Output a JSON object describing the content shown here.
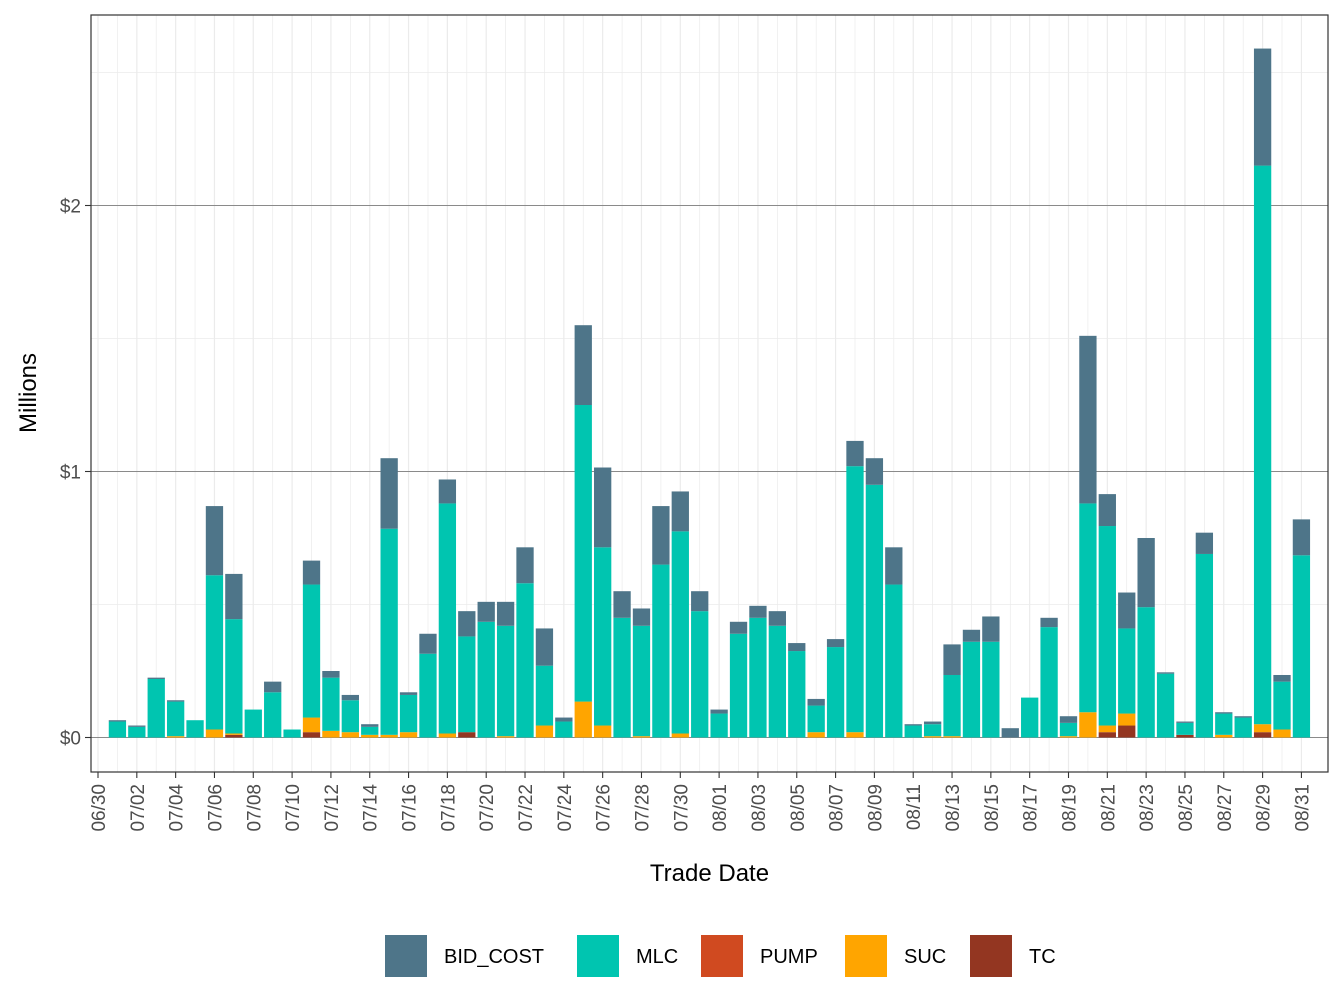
{
  "chart_data": {
    "type": "bar",
    "stacked": true,
    "title": "",
    "xlabel": "Trade Date",
    "ylabel": "Millions",
    "ylim": [
      -0.13,
      2.7
    ],
    "y_ticks": [
      0,
      1,
      2
    ],
    "y_tick_labels": [
      "$0",
      "$1",
      "$2"
    ],
    "grid": true,
    "legend_position": "bottom",
    "x_tick_labels": [
      "06/30",
      "07/02",
      "07/04",
      "07/06",
      "07/08",
      "07/10",
      "07/12",
      "07/14",
      "07/16",
      "07/18",
      "07/20",
      "07/22",
      "07/24",
      "07/26",
      "07/28",
      "07/30",
      "08/01",
      "08/03",
      "08/05",
      "08/07",
      "08/09",
      "08/11",
      "08/13",
      "08/15",
      "08/17",
      "08/19",
      "08/21",
      "08/23",
      "08/25",
      "08/27",
      "08/29",
      "08/31"
    ],
    "categories": [
      "07/01",
      "07/02",
      "07/03",
      "07/04",
      "07/05",
      "07/06",
      "07/07",
      "07/08",
      "07/09",
      "07/10",
      "07/11",
      "07/12",
      "07/13",
      "07/14",
      "07/15",
      "07/16",
      "07/17",
      "07/18",
      "07/19",
      "07/20",
      "07/21",
      "07/22",
      "07/23",
      "07/24",
      "07/25",
      "07/26",
      "07/27",
      "07/28",
      "07/29",
      "07/30",
      "07/31",
      "08/01",
      "08/02",
      "08/03",
      "08/04",
      "08/05",
      "08/06",
      "08/07",
      "08/08",
      "08/09",
      "08/10",
      "08/11",
      "08/12",
      "08/13",
      "08/14",
      "08/15",
      "08/16",
      "08/17",
      "08/18",
      "08/19",
      "08/20",
      "08/21",
      "08/22",
      "08/23",
      "08/24",
      "08/25",
      "08/26",
      "08/27",
      "08/28",
      "08/29",
      "08/30",
      "08/31"
    ],
    "series": [
      {
        "name": "TC",
        "color": "#933621",
        "values": [
          0,
          0,
          0,
          0,
          0,
          0,
          0.01,
          0,
          0,
          0,
          0.02,
          0,
          0,
          0,
          0,
          0,
          0,
          0,
          0.02,
          0,
          0,
          0,
          0,
          0,
          0,
          0,
          0,
          0,
          0,
          0,
          0,
          0,
          0,
          0,
          0,
          0,
          0,
          0,
          0,
          0,
          0,
          0,
          0,
          0,
          0,
          0,
          0,
          0,
          0,
          0,
          0,
          0.02,
          0.045,
          0,
          0,
          0.01,
          0,
          0,
          0,
          0.02,
          0,
          0
        ]
      },
      {
        "name": "SUC",
        "color": "#ffa500",
        "values": [
          0,
          0,
          0,
          0.005,
          0,
          0.03,
          0.005,
          0,
          0,
          0,
          0.055,
          0.025,
          0.02,
          0.01,
          0.01,
          0.02,
          0,
          0.015,
          0,
          0,
          0.005,
          0,
          0.045,
          0,
          0.135,
          0.045,
          0,
          0.005,
          0,
          0.015,
          0,
          0,
          0,
          0,
          0,
          0,
          0.02,
          0,
          0.02,
          0,
          0,
          0,
          0.005,
          0.005,
          0,
          0,
          0,
          0,
          0,
          0.005,
          0.095,
          0.025,
          0.045,
          0,
          0,
          0,
          0,
          0.01,
          0,
          0.03,
          0.03,
          0
        ]
      },
      {
        "name": "PUMP",
        "color": "#d04a20",
        "values": [
          0,
          0,
          0,
          0,
          0,
          0,
          0,
          0,
          0,
          0,
          0,
          0,
          0,
          0,
          0,
          0,
          0,
          0,
          0,
          0,
          0,
          0,
          0,
          0,
          0,
          0,
          0,
          0,
          0,
          0,
          0,
          0,
          0,
          0,
          0,
          0,
          0,
          0,
          0,
          0,
          0,
          0,
          0,
          0,
          0,
          0,
          0,
          0,
          0,
          0,
          0,
          0,
          0,
          0,
          0,
          0,
          0,
          0,
          0,
          0,
          0,
          0
        ]
      },
      {
        "name": "MLC",
        "color": "#00c5b0",
        "values": [
          0.06,
          0.04,
          0.22,
          0.13,
          0.065,
          0.58,
          0.43,
          0.105,
          0.17,
          0.03,
          0.5,
          0.2,
          0.12,
          0.03,
          0.775,
          0.14,
          0.315,
          0.865,
          0.36,
          0.435,
          0.415,
          0.58,
          0.225,
          0.06,
          1.115,
          0.67,
          0.45,
          0.415,
          0.65,
          0.76,
          0.475,
          0.09,
          0.39,
          0.45,
          0.42,
          0.325,
          0.1,
          0.34,
          1.0,
          0.95,
          0.575,
          0.045,
          0.045,
          0.23,
          0.36,
          0.36,
          0,
          0.15,
          0.415,
          0.05,
          0.785,
          0.75,
          0.32,
          0.49,
          0.24,
          0.045,
          0.69,
          0.08,
          0.075,
          2.1,
          0.18,
          0.685
        ]
      },
      {
        "name": "BID_COST",
        "color": "#4e7589",
        "values": [
          0.005,
          0.005,
          0.005,
          0.005,
          0,
          0.26,
          0.17,
          0,
          0.04,
          0,
          0.09,
          0.025,
          0.02,
          0.01,
          0.265,
          0.01,
          0.075,
          0.09,
          0.095,
          0.075,
          0.09,
          0.135,
          0.14,
          0.015,
          0.3,
          0.3,
          0.1,
          0.065,
          0.22,
          0.15,
          0.075,
          0.015,
          0.045,
          0.045,
          0.055,
          0.03,
          0.025,
          0.03,
          0.095,
          0.1,
          0.14,
          0.005,
          0.01,
          0.115,
          0.045,
          0.095,
          0.035,
          0,
          0.035,
          0.025,
          0.63,
          0.12,
          0.135,
          0.26,
          0.005,
          0.005,
          0.08,
          0.005,
          0.005,
          0.44,
          0.025,
          0.135
        ]
      }
    ],
    "legend": [
      "BID_COST",
      "MLC",
      "PUMP",
      "SUC",
      "TC"
    ]
  }
}
